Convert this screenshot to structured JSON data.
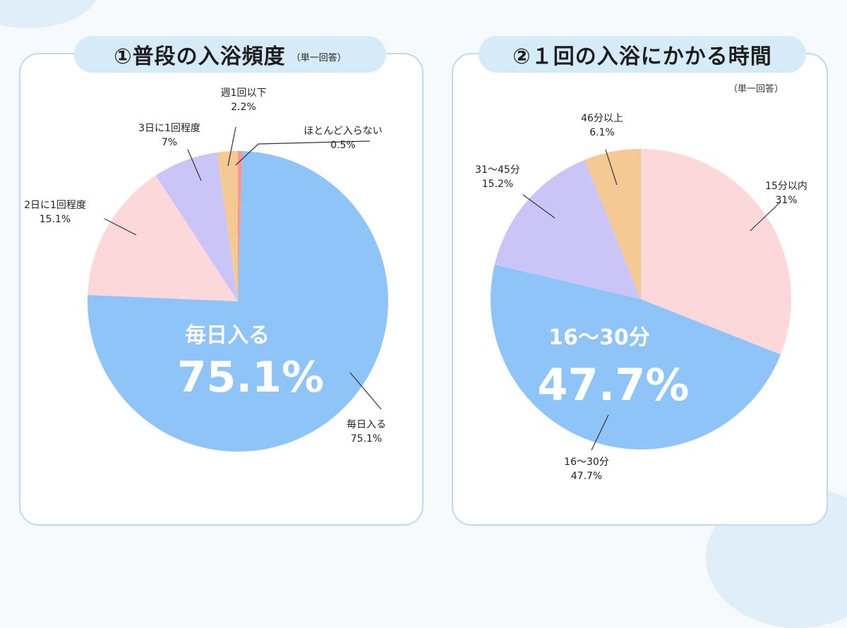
{
  "charts": [
    {
      "title": "①普段の入浴頻度",
      "title_note": "（単一回答）",
      "center_label": "毎日入る",
      "center_value": "75.1%"
    },
    {
      "title": "②１回の入浴にかかる時間",
      "title_note": "（単一回答）",
      "center_label": "16〜30分",
      "center_value": "47.7%"
    }
  ],
  "chart_data": [
    {
      "type": "pie",
      "title": "①普段の入浴頻度",
      "slices": [
        {
          "label": "ほとんど入らない",
          "value": 0.5,
          "pct_text": "0.5%",
          "color": "#f29a9a"
        },
        {
          "label": "毎日入る",
          "value": 75.1,
          "pct_text": "75.1%",
          "color": "#8ec4f8"
        },
        {
          "label": "2日に1回程度",
          "value": 15.1,
          "pct_text": "15.1%",
          "color": "#fcd8db"
        },
        {
          "label": "3日に1回程度",
          "value": 7,
          "pct_text": "7%",
          "color": "#cbc5f7"
        },
        {
          "label": "週1回以下",
          "value": 2.2,
          "pct_text": "2.2%",
          "color": "#f5c994"
        }
      ]
    },
    {
      "type": "pie",
      "title": "②１回の入浴にかかる時間",
      "slices": [
        {
          "label": "15分以内",
          "value": 31,
          "pct_text": "31%",
          "color": "#fcd8db"
        },
        {
          "label": "16〜30分",
          "value": 47.7,
          "pct_text": "47.7%",
          "color": "#8ec4f8"
        },
        {
          "label": "31〜45分",
          "value": 15.2,
          "pct_text": "15.2%",
          "color": "#cbc5f7"
        },
        {
          "label": "46分以上",
          "value": 6.1,
          "pct_text": "6.1%",
          "color": "#f5c994"
        }
      ]
    }
  ]
}
